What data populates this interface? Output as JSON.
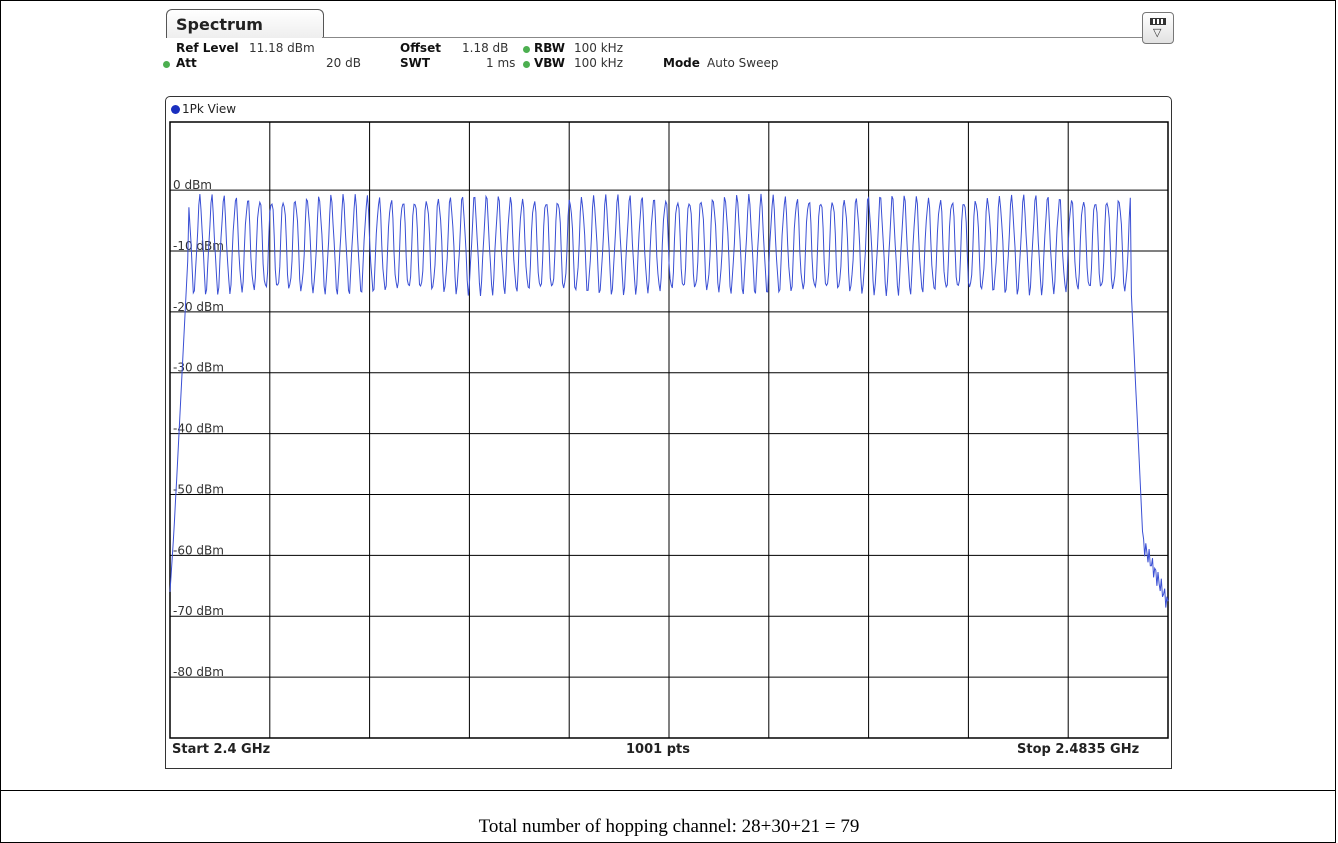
{
  "tab": {
    "label": "Spectrum"
  },
  "settings": {
    "ref_level_label": "Ref Level",
    "ref_level_value": "11.18 dBm",
    "offset_label": "Offset",
    "offset_value": "1.18 dB",
    "rbw_label": "RBW",
    "rbw_value": "100 kHz",
    "att_label": "Att",
    "att_value": "20 dB",
    "swt_label": "SWT",
    "swt_value": "1 ms",
    "vbw_label": "VBW",
    "vbw_value": "100 kHz",
    "mode_label": "Mode",
    "mode_value": "Auto Sweep"
  },
  "view_label": "1Pk View",
  "footer": {
    "start": "Start 2.4 GHz",
    "points": "1001 pts",
    "stop": "Stop 2.4835 GHz"
  },
  "caption": "Total number of hopping channel: 28+30+21 = 79",
  "colors": {
    "trace": "#3a4fd4",
    "grid": "#000000",
    "indicator": "#4caf50",
    "view_dot": "#1a2fbf"
  },
  "chart_data": {
    "type": "line",
    "title": "",
    "xlabel": "",
    "ylabel": "",
    "x_start_ghz": 2.4,
    "x_stop_ghz": 2.4835,
    "points": 1001,
    "y_tick_labels": [
      "0 dBm",
      "-10 dBm",
      "-20 dBm",
      "-30 dBm",
      "-40 dBm",
      "-50 dBm",
      "-60 dBm",
      "-70 dBm",
      "-80 dBm"
    ],
    "ylim": [
      -90,
      11.18
    ],
    "grid": true,
    "series": [
      {
        "channel_count": 79,
        "channel_peak_dbm": -1.5,
        "channel_trough_dbm": -16.5,
        "floor_left_dbm": -66,
        "floor_right_dbm": -68
      }
    ]
  }
}
